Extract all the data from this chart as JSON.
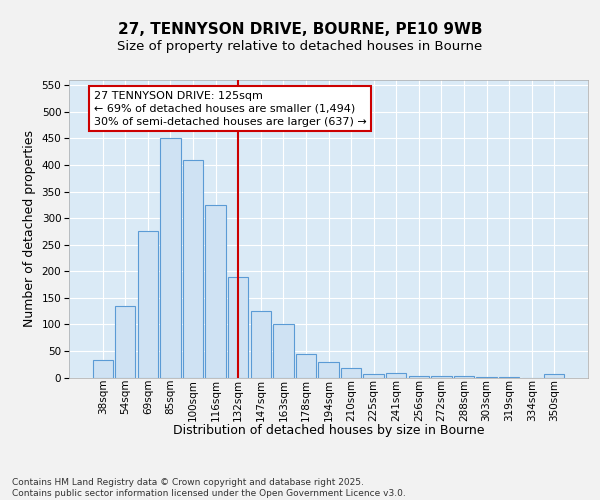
{
  "title_line1": "27, TENNYSON DRIVE, BOURNE, PE10 9WB",
  "title_line2": "Size of property relative to detached houses in Bourne",
  "xlabel": "Distribution of detached houses by size in Bourne",
  "ylabel": "Number of detached properties",
  "categories": [
    "38sqm",
    "54sqm",
    "69sqm",
    "85sqm",
    "100sqm",
    "116sqm",
    "132sqm",
    "147sqm",
    "163sqm",
    "178sqm",
    "194sqm",
    "210sqm",
    "225sqm",
    "241sqm",
    "256sqm",
    "272sqm",
    "288sqm",
    "303sqm",
    "319sqm",
    "334sqm",
    "350sqm"
  ],
  "values": [
    33,
    135,
    275,
    450,
    410,
    325,
    190,
    125,
    100,
    45,
    30,
    18,
    7,
    8,
    3,
    2,
    2,
    1,
    1,
    0,
    6
  ],
  "bar_color": "#cfe2f3",
  "bar_edge_color": "#5b9bd5",
  "plot_bg_color": "#daeaf6",
  "fig_bg_color": "#f2f2f2",
  "grid_color": "#ffffff",
  "annotation_text": "27 TENNYSON DRIVE: 125sqm\n← 69% of detached houses are smaller (1,494)\n30% of semi-detached houses are larger (637) →",
  "annotation_box_color": "#ffffff",
  "annotation_box_edge_color": "#cc0000",
  "vline_color": "#cc0000",
  "vline_x": 6.0,
  "ylim_max": 560,
  "yticks": [
    0,
    50,
    100,
    150,
    200,
    250,
    300,
    350,
    400,
    450,
    500,
    550
  ],
  "footer_text": "Contains HM Land Registry data © Crown copyright and database right 2025.\nContains public sector information licensed under the Open Government Licence v3.0.",
  "title_fontsize": 11,
  "subtitle_fontsize": 9.5,
  "axis_label_fontsize": 9,
  "tick_fontsize": 7.5,
  "annotation_fontsize": 8,
  "footer_fontsize": 6.5
}
